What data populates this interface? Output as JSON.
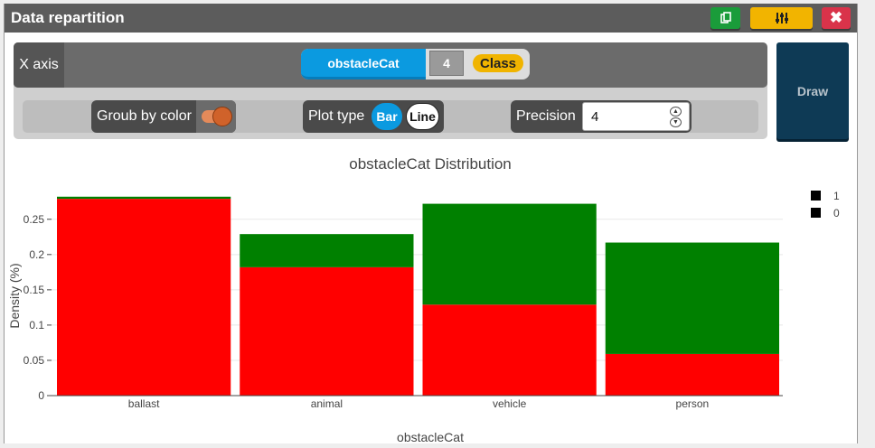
{
  "window": {
    "title": "Data repartition",
    "copy_icon": "copy-icon",
    "settings_icon": "sliders-icon",
    "close_icon": "close-icon",
    "colors": {
      "titlebar": "#5c5c5c",
      "copy": "#1a9c3a",
      "settings": "#f2b400",
      "close": "#d9334a"
    }
  },
  "controls": {
    "x_axis_label": "X axis",
    "variable_name": "obstacleCat",
    "variable_count": "4",
    "variable_type": "Class",
    "group_by_color_label": "Groub by color",
    "group_by_color_on": true,
    "plot_type_label": "Plot type",
    "plot_type_options": [
      "Bar",
      "Line"
    ],
    "plot_type_selected": "Bar",
    "precision_label": "Precision",
    "precision_value": "4",
    "draw_label": "Draw"
  },
  "chart_data": {
    "type": "bar",
    "stacked": true,
    "title": "obstacleCat Distribution",
    "xlabel": "obstacleCat",
    "ylabel": "Density (%)",
    "categories": [
      "ballast",
      "animal",
      "vehicle",
      "person"
    ],
    "series": [
      {
        "name": "0",
        "color": "#ff0000",
        "values": [
          0.279,
          0.182,
          0.129,
          0.059
        ]
      },
      {
        "name": "1",
        "color": "#008000",
        "values": [
          0.003,
          0.047,
          0.143,
          0.158
        ]
      }
    ],
    "yticks": [
      "0",
      "0.05",
      "0.1",
      "0.15",
      "0.2",
      "0.25"
    ],
    "ylim": [
      0,
      0.283
    ],
    "legend": [
      "1",
      "0"
    ],
    "legend_position": "top-right",
    "grid": true
  }
}
